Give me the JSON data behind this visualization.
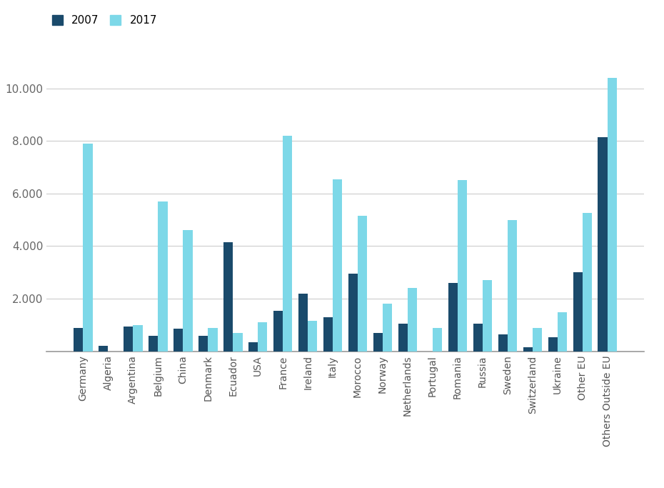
{
  "categories": [
    "Germany",
    "Algeria",
    "Argentina",
    "Belgium",
    "China",
    "Denmark",
    "Ecuador",
    "USA",
    "France",
    "Ireland",
    "Italy",
    "Morocco",
    "Norway",
    "Netherlands",
    "Portugal",
    "Romania",
    "Russia",
    "Sweden",
    "Switzerland",
    "Ukraine",
    "Other EU",
    "Others Outside EU"
  ],
  "values_2007": [
    900,
    200,
    950,
    600,
    850,
    600,
    4150,
    350,
    1550,
    2200,
    1300,
    2950,
    700,
    1050,
    0,
    2600,
    1050,
    650,
    150,
    550,
    3000,
    8150
  ],
  "values_2017": [
    7900,
    0,
    1000,
    5700,
    4600,
    900,
    700,
    1100,
    8200,
    1150,
    6550,
    5150,
    1800,
    2400,
    900,
    6500,
    2700,
    5000,
    900,
    1500,
    5250,
    10400
  ],
  "color_2007": "#1a4a6b",
  "color_2017": "#7dd8e8",
  "legend_2007": "2007",
  "legend_2017": "2017",
  "ylim": [
    0,
    11500
  ],
  "yticks": [
    2000,
    4000,
    6000,
    8000,
    10000
  ],
  "ytick_labels": [
    "2.000",
    "4.000",
    "6.000",
    "8.000",
    "10.000"
  ],
  "background_color": "#ffffff",
  "grid_color": "#cccccc"
}
